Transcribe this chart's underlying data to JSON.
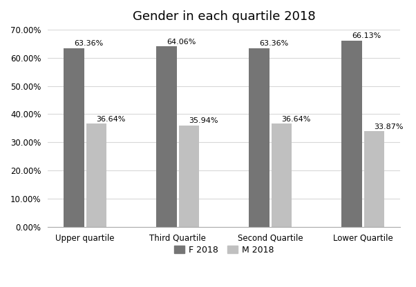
{
  "title": "Gender in each quartile 2018",
  "categories": [
    "Upper quartile",
    "Third Quartile",
    "Second Quartile",
    "Lower Quartile"
  ],
  "f_values": [
    63.36,
    64.06,
    63.36,
    66.13
  ],
  "m_values": [
    36.64,
    35.94,
    36.64,
    33.87
  ],
  "f_labels": [
    "63.36%",
    "64.06%",
    "63.36%",
    "66.13%"
  ],
  "m_labels": [
    "36.64%",
    "35.94%",
    "36.64%",
    "33.87%"
  ],
  "f_color": "#757575",
  "m_color": "#c0c0c0",
  "ylim": [
    0,
    70
  ],
  "yticks": [
    0,
    10,
    20,
    30,
    40,
    50,
    60,
    70
  ],
  "ytick_labels": [
    "0.00%",
    "10.00%",
    "20.00%",
    "30.00%",
    "40.00%",
    "50.00%",
    "60.00%",
    "70.00%"
  ],
  "legend_labels": [
    "F 2018",
    "M 2018"
  ],
  "bar_width": 0.22,
  "title_fontsize": 13,
  "tick_fontsize": 8.5,
  "label_fontsize": 8,
  "legend_fontsize": 9,
  "background_color": "#ffffff"
}
